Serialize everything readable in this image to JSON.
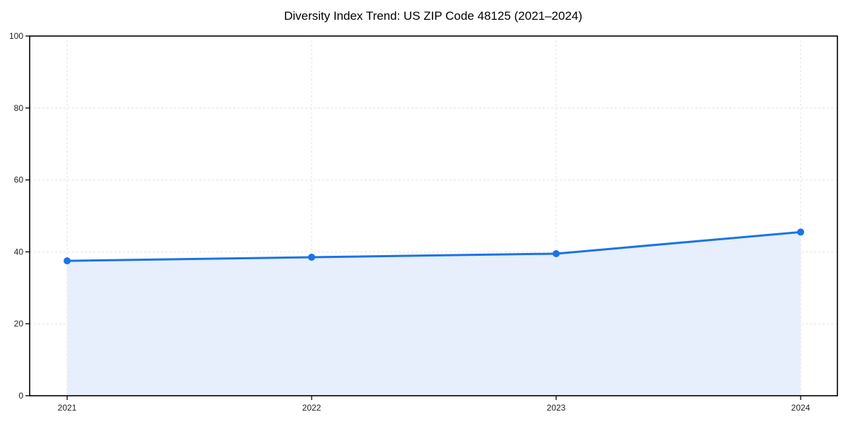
{
  "chart_data": {
    "type": "area",
    "title": "Diversity Index Trend: US ZIP Code 48125 (2021–2024)",
    "x": [
      2021,
      2022,
      2023,
      2024
    ],
    "series": [
      {
        "name": "Diversity Index",
        "values": [
          37.5,
          38.5,
          39.5,
          45.5
        ]
      }
    ],
    "xlabel": "",
    "ylabel": "",
    "ylim": [
      0,
      100
    ],
    "yticks": [
      0,
      20,
      40,
      60,
      80,
      100
    ],
    "grid": "dashed, both axes",
    "legend": "none",
    "colors": {
      "line": "#1a73e8",
      "marker": "#1a73e8",
      "fill": "#e7effc",
      "grid": "#e2e2e2",
      "axis": "#000000",
      "text": "#1f1f1f",
      "background": "#ffffff"
    }
  }
}
